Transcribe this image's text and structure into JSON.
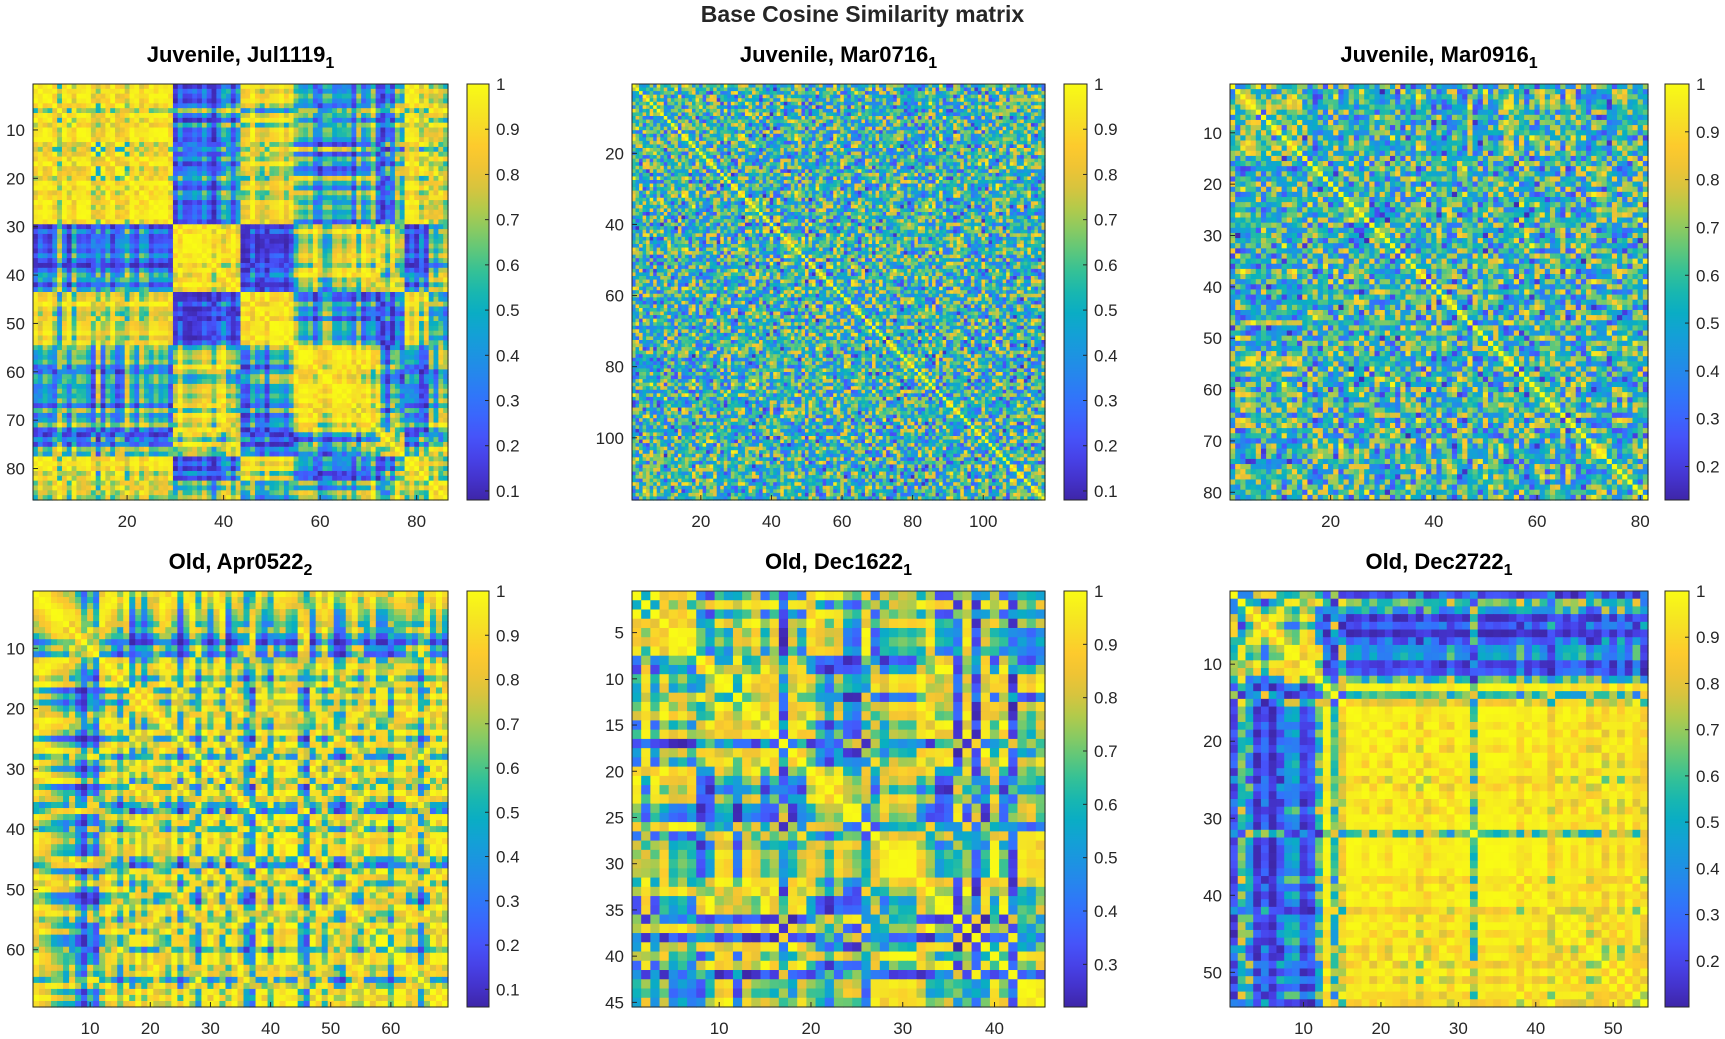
{
  "figure": {
    "suptitle": "Base Cosine Similarity matrix"
  },
  "chart_data": [
    {
      "type": "heatmap",
      "title": "Juvenile, Jul1119",
      "title_subscript": "1",
      "matrix_size": 86,
      "x_ticks": [
        20,
        40,
        60,
        80
      ],
      "y_ticks": [
        10,
        20,
        30,
        40,
        50,
        60,
        70,
        80
      ],
      "clim": [
        0.08,
        1
      ],
      "colorbar_ticks": [
        0.1,
        0.2,
        0.3,
        0.4,
        0.5,
        0.6,
        0.7,
        0.8,
        0.9,
        1
      ],
      "colormap": "parula",
      "style": "block",
      "seed": 11
    },
    {
      "type": "heatmap",
      "title": "Juvenile, Mar0716",
      "title_subscript": "1",
      "matrix_size": 117,
      "x_ticks": [
        20,
        40,
        60,
        80,
        100
      ],
      "y_ticks": [
        20,
        40,
        60,
        80,
        100
      ],
      "clim": [
        0.08,
        1
      ],
      "colorbar_ticks": [
        0.1,
        0.2,
        0.3,
        0.4,
        0.5,
        0.6,
        0.7,
        0.8,
        0.9,
        1
      ],
      "colormap": "parula",
      "style": "fine",
      "seed": 23
    },
    {
      "type": "heatmap",
      "title": "Juvenile, Mar0916",
      "title_subscript": "1",
      "matrix_size": 81,
      "x_ticks": [
        20,
        40,
        60,
        80
      ],
      "y_ticks": [
        10,
        20,
        30,
        40,
        50,
        60,
        70,
        80
      ],
      "clim": [
        0.13,
        1
      ],
      "colorbar_ticks": [
        0.2,
        0.3,
        0.4,
        0.5,
        0.6,
        0.7,
        0.8,
        0.9,
        1
      ],
      "colormap": "parula",
      "style": "fine",
      "seed": 37
    },
    {
      "type": "heatmap",
      "title": "Old, Apr0522",
      "title_subscript": "2",
      "matrix_size": 69,
      "x_ticks": [
        10,
        20,
        30,
        40,
        50,
        60
      ],
      "y_ticks": [
        10,
        20,
        30,
        40,
        50,
        60
      ],
      "clim": [
        0.06,
        1
      ],
      "colorbar_ticks": [
        0.1,
        0.2,
        0.3,
        0.4,
        0.5,
        0.6,
        0.7,
        0.8,
        0.9,
        1
      ],
      "colormap": "parula",
      "style": "lowblock",
      "seed": 41
    },
    {
      "type": "heatmap",
      "title": "Old, Dec1622",
      "title_subscript": "1",
      "matrix_size": 45,
      "x_ticks": [
        10,
        20,
        30,
        40
      ],
      "y_ticks": [
        5,
        10,
        15,
        20,
        25,
        30,
        35,
        40,
        45
      ],
      "clim": [
        0.22,
        1
      ],
      "colorbar_ticks": [
        0.3,
        0.4,
        0.5,
        0.6,
        0.7,
        0.8,
        0.9,
        1
      ],
      "colormap": "parula",
      "style": "mid",
      "seed": 53
    },
    {
      "type": "heatmap",
      "title": "Old, Dec2722",
      "title_subscript": "1",
      "matrix_size": 54,
      "x_ticks": [
        10,
        20,
        30,
        40,
        50
      ],
      "y_ticks": [
        10,
        20,
        30,
        40,
        50
      ],
      "clim": [
        0.1,
        1
      ],
      "colorbar_ticks": [
        0.2,
        0.3,
        0.4,
        0.5,
        0.6,
        0.7,
        0.8,
        0.9,
        1
      ],
      "colormap": "parula",
      "style": "block",
      "seed": 67
    }
  ]
}
